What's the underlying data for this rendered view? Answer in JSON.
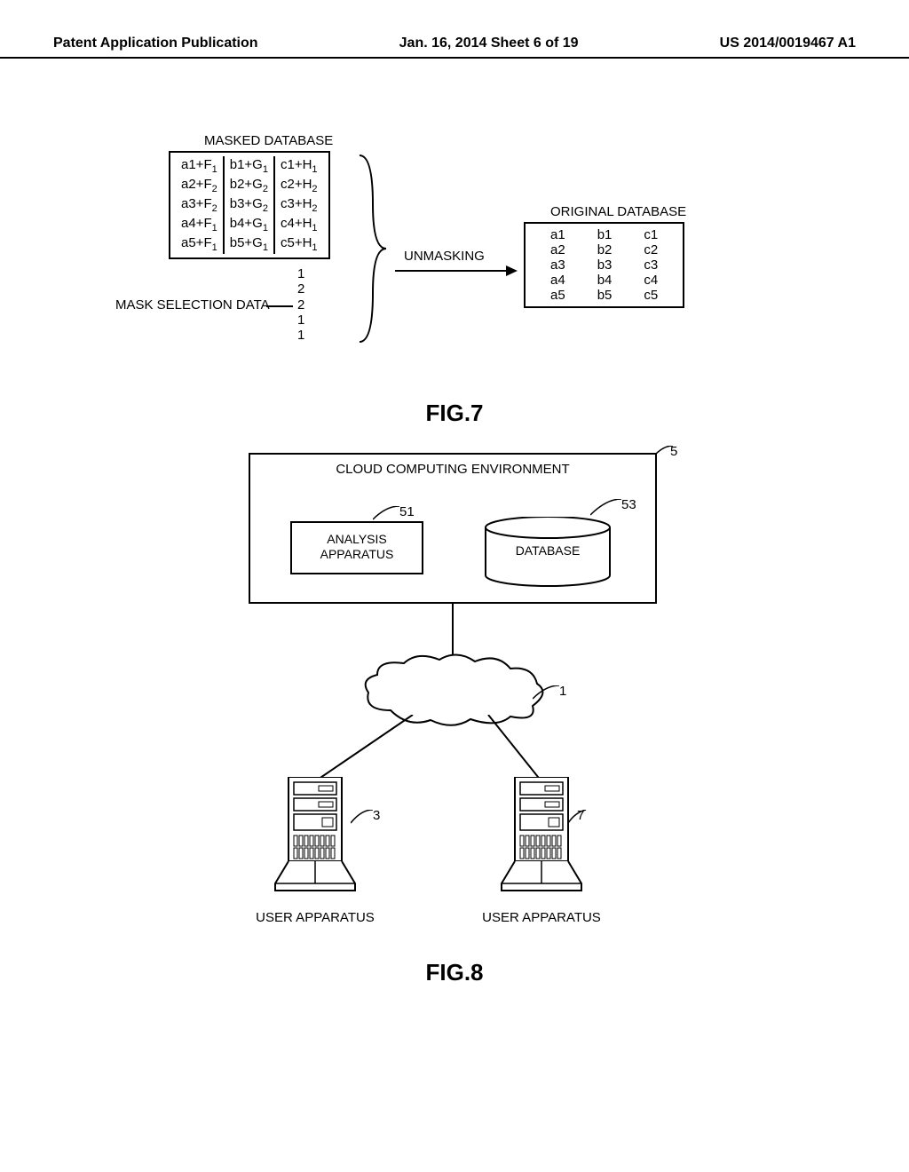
{
  "header": {
    "left": "Patent Application Publication",
    "center": "Jan. 16, 2014  Sheet 6 of 19",
    "right": "US 2014/0019467 A1"
  },
  "fig7": {
    "masked_label": "MASKED DATABASE",
    "masked_rows": [
      [
        "a1+F",
        "1",
        "b1+G",
        "1",
        "c1+H",
        "1"
      ],
      [
        "a2+F",
        "2",
        "b2+G",
        "2",
        "c2+H",
        "2"
      ],
      [
        "a3+F",
        "2",
        "b3+G",
        "2",
        "c3+H",
        "2"
      ],
      [
        "a4+F",
        "1",
        "b4+G",
        "1",
        "c4+H",
        "1"
      ],
      [
        "a5+F",
        "1",
        "b5+G",
        "1",
        "c5+H",
        "1"
      ]
    ],
    "msd_label": "MASK SELECTION DATA",
    "msd_values": [
      "1",
      "2",
      "2",
      "1",
      "1"
    ],
    "unmasking_label": "UNMASKING",
    "orig_label": "ORIGINAL DATABASE",
    "orig_rows": [
      [
        "a1",
        "b1",
        "c1"
      ],
      [
        "a2",
        "b2",
        "c2"
      ],
      [
        "a3",
        "b3",
        "c3"
      ],
      [
        "a4",
        "b4",
        "c4"
      ],
      [
        "a5",
        "b5",
        "c5"
      ]
    ],
    "caption": "FIG.7"
  },
  "fig8": {
    "env_title": "CLOUD COMPUTING ENVIRONMENT",
    "analysis_label": "ANALYSIS\nAPPARATUS",
    "database_label": "DATABASE",
    "user_app_label": "USER APPARATUS",
    "refs": {
      "env": "5",
      "analysis": "51",
      "database": "53",
      "cloud": "1",
      "comp_left": "3",
      "comp_right": "7"
    },
    "caption": "FIG.8"
  },
  "style": {
    "stroke": "#000000",
    "bg": "#ffffff",
    "header_fontsize": 16,
    "body_fontsize": 15,
    "caption_fontsize": 26
  }
}
